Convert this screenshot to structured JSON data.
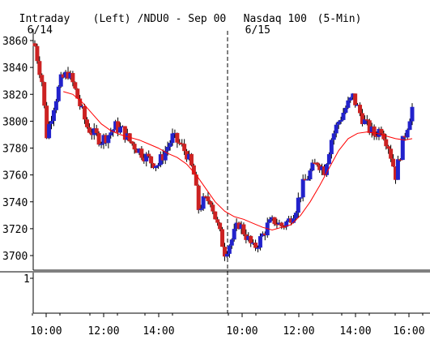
{
  "header": {
    "label": "Intraday",
    "axis_side": "(Left)",
    "instrument": "/NDU0 - Sep 00",
    "index": "Nasdaq 100",
    "interval": "(5-Min)",
    "day1": "6/14",
    "day2": "6/15"
  },
  "colors": {
    "up": "#2222cc",
    "down": "#cc2222",
    "moving_average": "#ff0000",
    "background": "#ffffff",
    "axis": "#000000"
  },
  "chart_data": {
    "type": "candlestick",
    "title": "",
    "xlabel": "",
    "ylabel": "",
    "ylim": [
      3695,
      3865
    ],
    "yticks": [
      3700,
      3720,
      3740,
      3760,
      3780,
      3800,
      3820,
      3840,
      3860
    ],
    "xticks": [
      "10:00",
      "12:00",
      "14:00",
      "10:00",
      "12:00",
      "14:00",
      "16:00"
    ],
    "day_separator_after_bar": 71,
    "volume_panel": {
      "ytick": "1"
    },
    "close_path": [
      [
        0,
        3856
      ],
      [
        3,
        3830
      ],
      [
        5,
        3790
      ],
      [
        8,
        3812
      ],
      [
        11,
        3830
      ],
      [
        14,
        3836
      ],
      [
        16,
        3828
      ],
      [
        19,
        3812
      ],
      [
        22,
        3796
      ],
      [
        25,
        3790
      ],
      [
        28,
        3786
      ],
      [
        31,
        3790
      ],
      [
        34,
        3796
      ],
      [
        37,
        3793
      ],
      [
        40,
        3785
      ],
      [
        43,
        3780
      ],
      [
        46,
        3775
      ],
      [
        49,
        3770
      ],
      [
        52,
        3768
      ],
      [
        55,
        3778
      ],
      [
        58,
        3788
      ],
      [
        61,
        3783
      ],
      [
        64,
        3776
      ],
      [
        67,
        3760
      ],
      [
        69,
        3735
      ],
      [
        71,
        3740
      ],
      [
        74,
        3742
      ],
      [
        77,
        3722
      ],
      [
        80,
        3703
      ],
      [
        83,
        3712
      ],
      [
        86,
        3724
      ],
      [
        89,
        3715
      ],
      [
        92,
        3705
      ],
      [
        95,
        3712
      ],
      [
        98,
        3722
      ],
      [
        101,
        3726
      ],
      [
        104,
        3722
      ],
      [
        107,
        3726
      ],
      [
        110,
        3736
      ],
      [
        113,
        3752
      ],
      [
        116,
        3762
      ],
      [
        119,
        3770
      ],
      [
        122,
        3764
      ],
      [
        125,
        3787
      ],
      [
        128,
        3800
      ],
      [
        131,
        3810
      ],
      [
        134,
        3818
      ],
      [
        137,
        3806
      ],
      [
        140,
        3796
      ],
      [
        143,
        3790
      ],
      [
        146,
        3795
      ],
      [
        149,
        3782
      ],
      [
        152,
        3760
      ],
      [
        155,
        3784
      ],
      [
        158,
        3804
      ],
      [
        159,
        3810
      ]
    ],
    "ma_path": [
      [
        12,
        3822
      ],
      [
        16,
        3820
      ],
      [
        20,
        3814
      ],
      [
        24,
        3806
      ],
      [
        28,
        3798
      ],
      [
        32,
        3793
      ],
      [
        36,
        3790
      ],
      [
        40,
        3788
      ],
      [
        44,
        3786
      ],
      [
        48,
        3783
      ],
      [
        52,
        3780
      ],
      [
        56,
        3776
      ],
      [
        60,
        3773
      ],
      [
        64,
        3768
      ],
      [
        68,
        3760
      ],
      [
        72,
        3750
      ],
      [
        76,
        3740
      ],
      [
        80,
        3733
      ],
      [
        84,
        3729
      ],
      [
        88,
        3727
      ],
      [
        92,
        3724
      ],
      [
        96,
        3721
      ],
      [
        100,
        3719
      ],
      [
        104,
        3721
      ],
      [
        108,
        3723
      ],
      [
        112,
        3730
      ],
      [
        116,
        3740
      ],
      [
        120,
        3752
      ],
      [
        124,
        3765
      ],
      [
        128,
        3778
      ],
      [
        132,
        3787
      ],
      [
        136,
        3791
      ],
      [
        140,
        3792
      ],
      [
        144,
        3791
      ],
      [
        148,
        3789
      ],
      [
        152,
        3787
      ],
      [
        156,
        3786
      ],
      [
        159,
        3787
      ]
    ]
  }
}
